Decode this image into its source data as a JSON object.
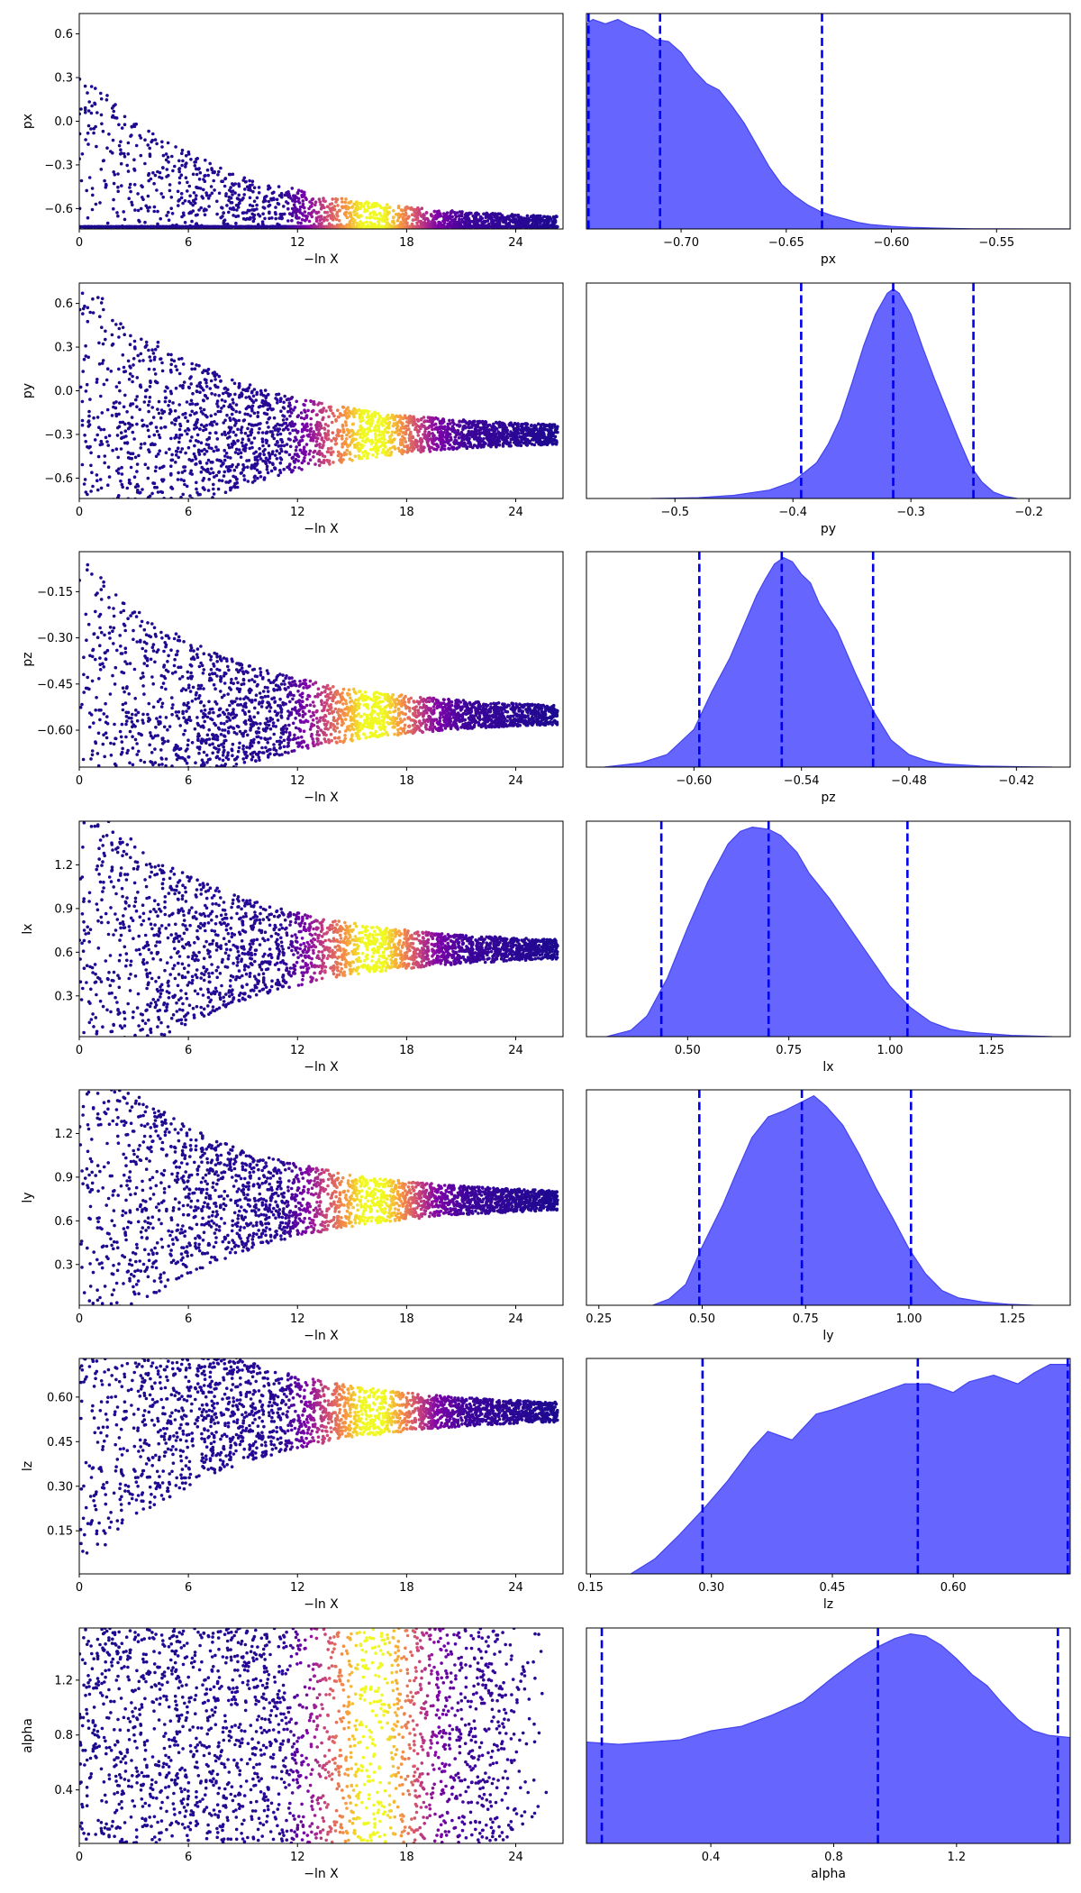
{
  "colors": {
    "density_fill": "#6666ff",
    "density_edge": "#4444ee",
    "quantile_line": "#0000ee",
    "scatter_colormap": "plasma"
  },
  "trace_x_label": "−ln X",
  "trace_x_ticks": [
    0,
    6,
    12,
    18,
    24
  ],
  "trace_x_range": [
    0,
    26.6
  ],
  "chart_data": [
    {
      "type": "scatter",
      "param": "px",
      "ylabel": "px",
      "grid": false,
      "x_range": [
        0,
        26.6
      ],
      "y_range": [
        -0.74,
        0.74
      ],
      "y_ticks": [
        0.6,
        0.3,
        0.0,
        -0.3,
        -0.6
      ],
      "y_tick_labels": [
        "0.6",
        "0.3",
        "0.0",
        "−0.3",
        "−0.6"
      ],
      "description_shape": "funnel",
      "final_value": -0.72
    },
    {
      "type": "area",
      "param": "px",
      "xlabel": "px",
      "grid": false,
      "x_range": [
        -0.745,
        -0.515
      ],
      "x_ticks": [
        -0.7,
        -0.65,
        -0.6,
        -0.55
      ],
      "x_tick_labels": [
        "−0.70",
        "−0.65",
        "−0.60",
        "−0.55"
      ],
      "quantiles": [
        -0.744,
        -0.71,
        -0.633
      ],
      "density": {
        "x": [
          -0.745,
          -0.742,
          -0.736,
          -0.73,
          -0.724,
          -0.718,
          -0.712,
          -0.706,
          -0.7,
          -0.694,
          -0.688,
          -0.682,
          -0.676,
          -0.67,
          -0.664,
          -0.658,
          -0.652,
          -0.646,
          -0.64,
          -0.634,
          -0.628,
          -0.622,
          -0.616,
          -0.61,
          -0.6,
          -0.59,
          -0.58,
          -0.57,
          -0.56,
          -0.545,
          -0.53,
          -0.515
        ],
        "y": [
          0.93,
          0.95,
          0.93,
          0.95,
          0.92,
          0.9,
          0.86,
          0.85,
          0.8,
          0.72,
          0.66,
          0.63,
          0.56,
          0.48,
          0.38,
          0.28,
          0.2,
          0.15,
          0.11,
          0.08,
          0.06,
          0.045,
          0.03,
          0.02,
          0.012,
          0.007,
          0.004,
          0.002,
          0.001,
          0.0005,
          0.0002,
          0
        ]
      }
    },
    {
      "type": "scatter",
      "param": "py",
      "ylabel": "py",
      "grid": false,
      "x_range": [
        0,
        26.6
      ],
      "y_range": [
        -0.74,
        0.74
      ],
      "y_ticks": [
        0.6,
        0.3,
        0.0,
        -0.3,
        -0.6
      ],
      "y_tick_labels": [
        "0.6",
        "0.3",
        "0.0",
        "−0.3",
        "−0.6"
      ],
      "description_shape": "funnel",
      "final_value": -0.3
    },
    {
      "type": "area",
      "param": "py",
      "xlabel": "py",
      "grid": false,
      "x_range": [
        -0.575,
        -0.165
      ],
      "x_ticks": [
        -0.5,
        -0.4,
        -0.3,
        -0.2
      ],
      "x_tick_labels": [
        "−0.5",
        "−0.4",
        "−0.3",
        "−0.2"
      ],
      "quantiles": [
        -0.393,
        -0.315,
        -0.247
      ],
      "density": {
        "x": [
          -0.52,
          -0.48,
          -0.45,
          -0.42,
          -0.4,
          -0.38,
          -0.37,
          -0.36,
          -0.35,
          -0.34,
          -0.33,
          -0.32,
          -0.315,
          -0.31,
          -0.3,
          -0.29,
          -0.28,
          -0.27,
          -0.26,
          -0.25,
          -0.24,
          -0.23,
          -0.22,
          -0.21
        ],
        "y": [
          0,
          0.004,
          0.015,
          0.04,
          0.08,
          0.17,
          0.26,
          0.38,
          0.55,
          0.73,
          0.88,
          0.98,
          1.0,
          0.98,
          0.88,
          0.72,
          0.57,
          0.43,
          0.29,
          0.16,
          0.08,
          0.03,
          0.01,
          0
        ]
      }
    },
    {
      "type": "scatter",
      "param": "pz",
      "ylabel": "pz",
      "grid": false,
      "x_range": [
        0,
        26.6
      ],
      "y_range": [
        -0.72,
        -0.02
      ],
      "y_ticks": [
        -0.15,
        -0.3,
        -0.45,
        -0.6
      ],
      "y_tick_labels": [
        "−0.15",
        "−0.30",
        "−0.45",
        "−0.60"
      ],
      "description_shape": "funnel",
      "final_value": -0.55
    },
    {
      "type": "area",
      "param": "pz",
      "xlabel": "pz",
      "grid": false,
      "x_range": [
        -0.66,
        -0.39
      ],
      "x_ticks": [
        -0.6,
        -0.54,
        -0.48,
        -0.42
      ],
      "x_tick_labels": [
        "−0.60",
        "−0.54",
        "−0.48",
        "−0.42"
      ],
      "quantiles": [
        -0.597,
        -0.551,
        -0.5
      ],
      "density": {
        "x": [
          -0.65,
          -0.63,
          -0.615,
          -0.6,
          -0.59,
          -0.58,
          -0.57,
          -0.565,
          -0.56,
          -0.555,
          -0.55,
          -0.545,
          -0.54,
          -0.535,
          -0.53,
          -0.52,
          -0.51,
          -0.5,
          -0.49,
          -0.48,
          -0.47,
          -0.46,
          -0.44,
          -0.42,
          -0.4
        ],
        "y": [
          0,
          0.02,
          0.06,
          0.18,
          0.36,
          0.52,
          0.72,
          0.82,
          0.9,
          0.97,
          1.0,
          0.98,
          0.92,
          0.88,
          0.78,
          0.65,
          0.45,
          0.27,
          0.13,
          0.06,
          0.03,
          0.015,
          0.005,
          0.002,
          0
        ]
      }
    },
    {
      "type": "area",
      "param": "lx",
      "xlabel": "lx",
      "grid": false,
      "x_range": [
        0.25,
        1.445
      ],
      "x_ticks": [
        0.5,
        0.75,
        1.0,
        1.25
      ],
      "x_tick_labels": [
        "0.50",
        "0.75",
        "1.00",
        "1.25"
      ],
      "quantiles": [
        0.435,
        0.7,
        1.043
      ],
      "density": {
        "x": [
          0.3,
          0.36,
          0.4,
          0.45,
          0.5,
          0.55,
          0.6,
          0.63,
          0.66,
          0.7,
          0.73,
          0.77,
          0.8,
          0.85,
          0.9,
          0.95,
          1.0,
          1.05,
          1.1,
          1.15,
          1.2,
          1.3,
          1.4
        ],
        "y": [
          0,
          0.03,
          0.1,
          0.28,
          0.52,
          0.74,
          0.92,
          0.98,
          1.0,
          0.99,
          0.96,
          0.88,
          0.78,
          0.66,
          0.52,
          0.38,
          0.24,
          0.14,
          0.07,
          0.035,
          0.02,
          0.006,
          0
        ]
      }
    },
    {
      "type": "scatter",
      "param": "lx",
      "ylabel": "lx",
      "grid": false,
      "x_range": [
        0,
        26.6
      ],
      "y_range": [
        0.02,
        1.5
      ],
      "y_ticks": [
        1.2,
        0.9,
        0.6,
        0.3
      ],
      "y_tick_labels": [
        "1.2",
        "0.9",
        "0.6",
        "0.3"
      ],
      "description_shape": "funnel",
      "final_value": 0.62
    },
    {
      "type": "scatter",
      "param": "ly",
      "ylabel": "ly",
      "grid": false,
      "x_range": [
        0,
        26.6
      ],
      "y_range": [
        0.02,
        1.5
      ],
      "y_ticks": [
        1.2,
        0.9,
        0.6,
        0.3
      ],
      "y_tick_labels": [
        "1.2",
        "0.9",
        "0.6",
        "0.3"
      ],
      "description_shape": "funnel",
      "final_value": 0.74
    },
    {
      "type": "area",
      "param": "ly",
      "xlabel": "ly",
      "grid": false,
      "x_range": [
        0.22,
        1.39
      ],
      "x_ticks": [
        0.25,
        0.5,
        0.75,
        1.0,
        1.25
      ],
      "x_tick_labels": [
        "0.25",
        "0.50",
        "0.75",
        "1.00",
        "1.25"
      ],
      "quantiles": [
        0.493,
        0.741,
        1.005
      ],
      "density": {
        "x": [
          0.38,
          0.42,
          0.46,
          0.5,
          0.55,
          0.58,
          0.62,
          0.66,
          0.7,
          0.74,
          0.77,
          0.8,
          0.84,
          0.88,
          0.92,
          0.96,
          1.0,
          1.04,
          1.08,
          1.12,
          1.18,
          1.24,
          1.3
        ],
        "y": [
          0,
          0.03,
          0.1,
          0.28,
          0.48,
          0.62,
          0.8,
          0.9,
          0.93,
          0.97,
          1.0,
          0.95,
          0.86,
          0.72,
          0.56,
          0.42,
          0.27,
          0.15,
          0.07,
          0.035,
          0.015,
          0.005,
          0
        ]
      }
    },
    {
      "type": "scatter",
      "param": "lz",
      "ylabel": "lz",
      "grid": false,
      "x_range": [
        0,
        26.6
      ],
      "y_range": [
        0.005,
        0.73
      ],
      "y_ticks": [
        0.6,
        0.45,
        0.3,
        0.15
      ],
      "y_tick_labels": [
        "0.60",
        "0.45",
        "0.30",
        "0.15"
      ],
      "description_shape": "funnel",
      "final_value": 0.55
    },
    {
      "type": "area",
      "param": "lz",
      "xlabel": "lz",
      "grid": false,
      "x_range": [
        0.145,
        0.745
      ],
      "x_ticks": [
        0.15,
        0.3,
        0.45,
        0.6
      ],
      "x_tick_labels": [
        "0.15",
        "0.30",
        "0.45",
        "0.60"
      ],
      "quantiles": [
        0.289,
        0.556,
        0.742
      ],
      "density": {
        "x": [
          0.2,
          0.23,
          0.26,
          0.29,
          0.32,
          0.35,
          0.37,
          0.4,
          0.43,
          0.45,
          0.48,
          0.51,
          0.54,
          0.57,
          0.6,
          0.62,
          0.65,
          0.68,
          0.7,
          0.72,
          0.745
        ],
        "y": [
          0,
          0.07,
          0.18,
          0.3,
          0.43,
          0.58,
          0.66,
          0.62,
          0.74,
          0.76,
          0.8,
          0.84,
          0.88,
          0.88,
          0.84,
          0.89,
          0.92,
          0.88,
          0.93,
          0.97,
          0.97
        ]
      }
    },
    {
      "type": "scatter",
      "param": "alpha",
      "ylabel": "alpha",
      "grid": false,
      "x_range": [
        0,
        26.6
      ],
      "y_range": [
        0.01,
        1.58
      ],
      "y_ticks": [
        1.2,
        0.8,
        0.4
      ],
      "y_tick_labels": [
        "1.2",
        "0.8",
        "0.4"
      ],
      "description_shape": "band",
      "final_value": 1.1
    },
    {
      "type": "area",
      "param": "alpha",
      "xlabel": "alpha",
      "grid": false,
      "x_range": [
        -0.005,
        1.57
      ],
      "x_ticks": [
        0.4,
        0.8,
        1.2
      ],
      "x_tick_labels": [
        "0.4",
        "0.8",
        "1.2"
      ],
      "quantiles": [
        0.045,
        0.944,
        1.53
      ],
      "density": {
        "x": [
          -0.005,
          0.1,
          0.2,
          0.3,
          0.4,
          0.5,
          0.6,
          0.7,
          0.8,
          0.88,
          0.94,
          1.0,
          1.05,
          1.1,
          1.15,
          1.2,
          1.25,
          1.3,
          1.35,
          1.4,
          1.45,
          1.5,
          1.57
        ],
        "y": [
          0.45,
          0.44,
          0.45,
          0.46,
          0.5,
          0.52,
          0.57,
          0.63,
          0.74,
          0.82,
          0.87,
          0.91,
          0.93,
          0.92,
          0.88,
          0.82,
          0.75,
          0.7,
          0.62,
          0.55,
          0.5,
          0.48,
          0.47
        ]
      }
    }
  ]
}
